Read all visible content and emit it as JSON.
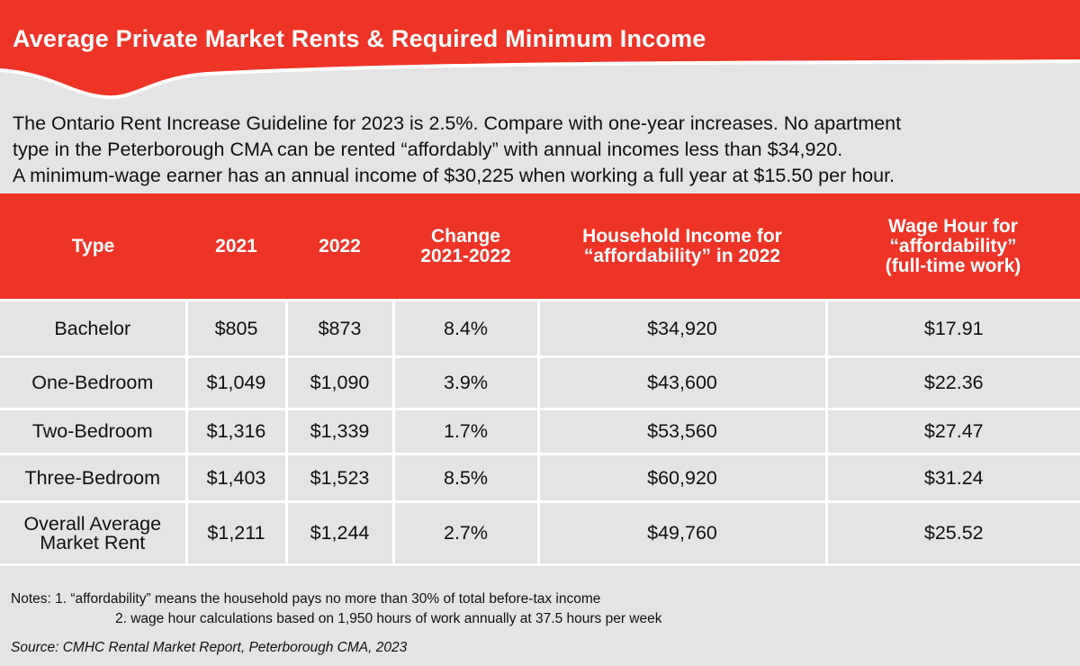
{
  "colors": {
    "accent": "#ee3427",
    "background": "#e4e4e6"
  },
  "title": "Average Private Market Rents & Required Minimum Income",
  "intro": [
    "The Ontario Rent Increase Guideline for 2023 is 2.5%. Compare with one-year increases. No apartment",
    "type in the Peterborough CMA can be rented “affordably” with annual incomes less than $34,920.",
    "A minimum-wage earner has an annual income of $30,225 when working a full year at $15.50 per hour."
  ],
  "table": {
    "headers": [
      [
        "Type"
      ],
      [
        "2021"
      ],
      [
        "2022"
      ],
      [
        "Change",
        "2021-2022"
      ],
      [
        "Household Income for",
        "“affordability” in 2022"
      ],
      [
        "Wage Hour for",
        "“affordability”",
        "(full-time work)"
      ]
    ],
    "rows": [
      [
        "Bachelor",
        "$805",
        "$873",
        "8.4%",
        "$34,920",
        "$17.91"
      ],
      [
        "One-Bedroom",
        "$1,049",
        "$1,090",
        "3.9%",
        "$43,600",
        "$22.36"
      ],
      [
        "Two-Bedroom",
        "$1,316",
        "$1,339",
        "1.7%",
        "$53,560",
        "$27.47"
      ],
      [
        "Three-Bedroom",
        "$1,403",
        "$1,523",
        "8.5%",
        "$60,920",
        "$31.24"
      ],
      [
        "Overall Average Market Rent",
        "$1,211",
        "$1,244",
        "2.7%",
        "$49,760",
        "$25.52"
      ]
    ]
  },
  "notes": [
    "Notes: 1. “affordability” means the household pays no more than 30% of total before-tax income",
    "2. wage hour calculations based on 1,950 hours of work annually at 37.5 hours per week"
  ],
  "source": "Source: CMHC Rental Market Report, Peterborough CMA, 2023"
}
